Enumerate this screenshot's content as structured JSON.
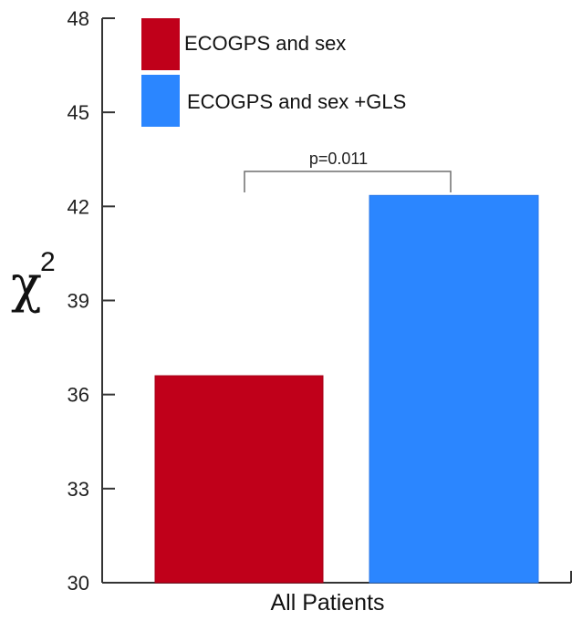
{
  "chart_data": {
    "type": "bar",
    "title": "",
    "xlabel": "",
    "ylabel": "χ²",
    "ylabel_base": "χ",
    "ylabel_sup": "2",
    "category": "All Patients",
    "ylim": [
      30,
      48
    ],
    "yticks": [
      "30",
      "33",
      "36",
      "39",
      "42",
      "45",
      "48"
    ],
    "series": [
      {
        "name": "ECOGPS and sex",
        "value": 36.6,
        "color": "#c0001a"
      },
      {
        "name": "ECOGPS and sex +GLS",
        "value": 42.35,
        "color": "#2b86ff"
      }
    ],
    "annotation": {
      "text": "p=0.011"
    },
    "legend_placement": "top-left",
    "grid": false
  }
}
